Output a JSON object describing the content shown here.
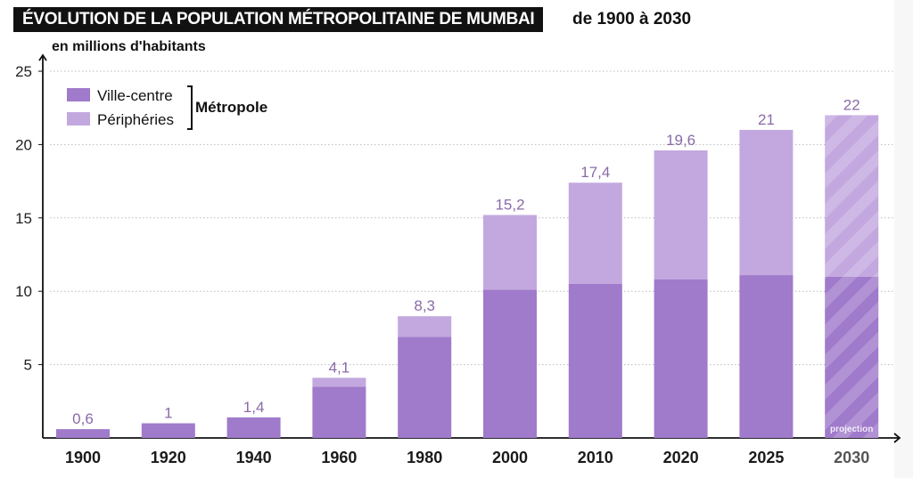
{
  "chart_data": {
    "type": "bar",
    "stacked": true,
    "title": "ÉVOLUTION DE LA POPULATION MÉTROPOLITAINE DE MUMBAI",
    "subtitle": "de 1900 à 2030",
    "ylabel": "en millions d'habitants",
    "ylim": [
      0,
      25
    ],
    "yticks": [
      5,
      10,
      15,
      20,
      25
    ],
    "grid": true,
    "legend_placement": "top-left",
    "legend_group_label": "Métropole",
    "categories": [
      "1900",
      "1920",
      "1940",
      "1960",
      "1980",
      "2000",
      "2010",
      "2020",
      "2025",
      "2030"
    ],
    "series": [
      {
        "name": "Ville-centre",
        "color": "#a07acb",
        "values": [
          0.6,
          1,
          1.4,
          3.5,
          6.9,
          10.1,
          10.5,
          10.8,
          11.1,
          11
        ]
      },
      {
        "name": "Périphéries",
        "color": "#c3a8df",
        "values": [
          0,
          0,
          0,
          0.6,
          1.4,
          5.1,
          6.9,
          8.8,
          9.9,
          11
        ]
      }
    ],
    "totals_labels": [
      "0,6",
      "1",
      "1,4",
      "4,1",
      "8,3",
      "15,2",
      "17,4",
      "19,6",
      "21",
      "22"
    ],
    "projection_category": "2030",
    "projection_label": "projection"
  }
}
